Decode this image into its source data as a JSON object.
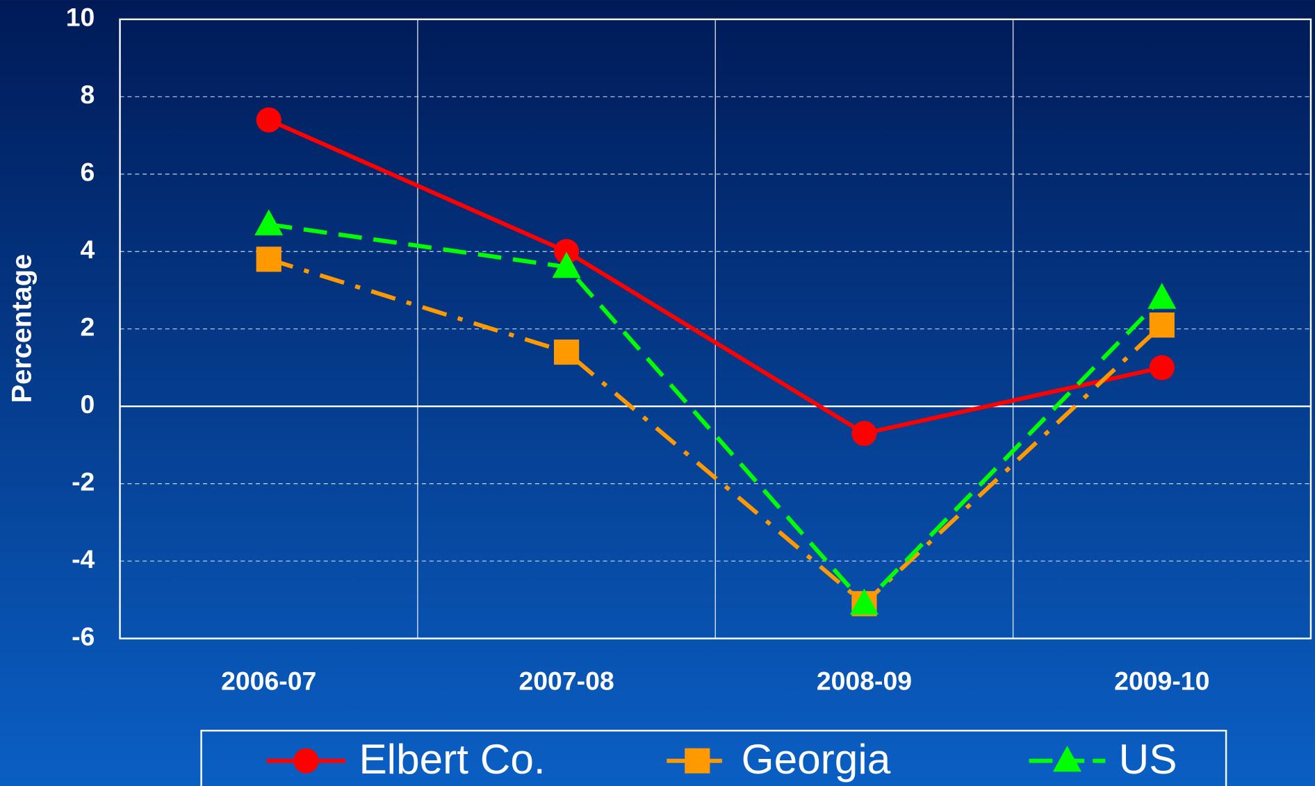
{
  "chart_data": {
    "type": "line",
    "y_label": "Percentage",
    "categories": [
      "2006-07",
      "2007-08",
      "2008-09",
      "2009-10"
    ],
    "series": [
      {
        "name": "Elbert Co.",
        "color": "#ff0000",
        "line_style": "solid",
        "marker": "circle",
        "values": [
          7.4,
          4.0,
          -0.7,
          1.0
        ]
      },
      {
        "name": "Georgia",
        "color": "#ff9900",
        "line_style": "dashdot",
        "marker": "square",
        "values": [
          3.8,
          1.4,
          -5.1,
          2.1
        ]
      },
      {
        "name": "US",
        "color": "#00ff00",
        "line_style": "dashed",
        "marker": "triangle",
        "values": [
          4.7,
          3.6,
          -5.1,
          2.8
        ]
      }
    ],
    "ylim": [
      -6,
      10
    ],
    "yticks": [
      -6,
      -4,
      -2,
      0,
      2,
      4,
      6,
      8,
      10
    ],
    "grid": true,
    "legend": "bottom"
  }
}
